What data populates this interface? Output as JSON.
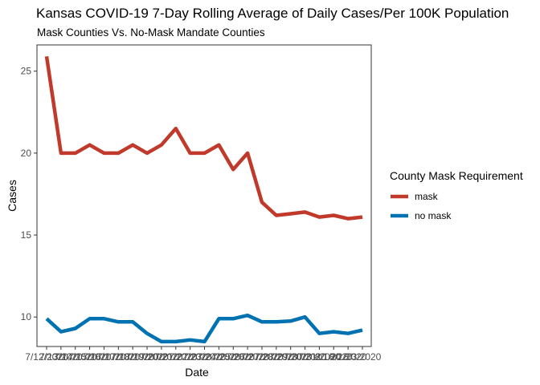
{
  "chart_data": {
    "type": "line",
    "title": "Kansas COVID-19 7-Day Rolling Average of Daily Cases/Per 100K Population",
    "subtitle": "Mask Counties Vs. No-Mask Mandate Counties",
    "xlabel": "Date",
    "ylabel": "Cases",
    "x": [
      "7/12/2020",
      "7/13/2020",
      "7/14/2020",
      "7/15/2020",
      "7/16/2020",
      "7/17/2020",
      "7/18/2020",
      "7/19/2020",
      "7/20/2020",
      "7/21/2020",
      "7/22/2020",
      "7/23/2020",
      "7/24/2020",
      "7/25/2020",
      "7/26/2020",
      "7/27/2020",
      "7/28/2020",
      "7/29/2020",
      "7/30/2020",
      "7/31/2020",
      "8/1/2020",
      "8/2/2020",
      "8/3/2020"
    ],
    "ylim": [
      8.2,
      26.6
    ],
    "yticks": [
      10,
      15,
      20,
      25
    ],
    "grid": false,
    "legend": {
      "title": "County Mask Requirement",
      "position": "right"
    },
    "series": [
      {
        "name": "mask",
        "color": "#c0392b",
        "values": [
          25.9,
          20.0,
          20.0,
          20.5,
          20.0,
          20.0,
          20.5,
          20.0,
          20.5,
          21.5,
          20.0,
          20.0,
          20.5,
          19.0,
          20.0,
          17.0,
          16.2,
          16.3,
          16.4,
          16.1,
          16.2,
          16.0,
          16.1
        ]
      },
      {
        "name": "no mask",
        "color": "#0072b2",
        "values": [
          9.9,
          9.1,
          9.3,
          9.9,
          9.9,
          9.7,
          9.7,
          9.0,
          8.5,
          8.5,
          8.6,
          8.5,
          9.9,
          9.9,
          10.1,
          9.7,
          9.7,
          9.75,
          10.0,
          9.0,
          9.1,
          9.0,
          9.2
        ]
      }
    ]
  }
}
